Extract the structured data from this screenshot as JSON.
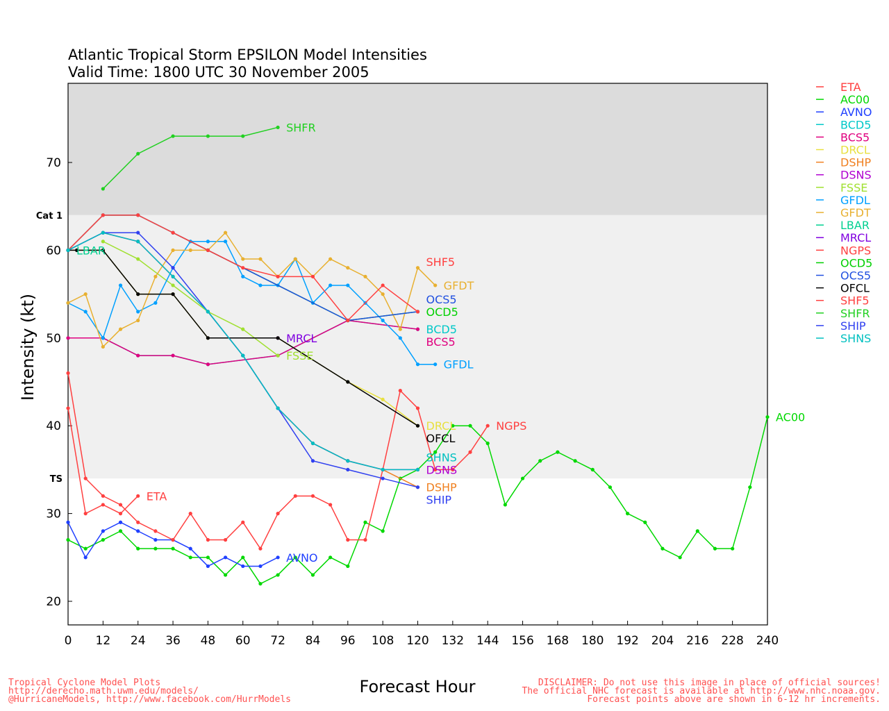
{
  "chart_data": {
    "type": "line",
    "title": "Atlantic Tropical Storm EPSILON Model Intensities",
    "subtitle": "Valid Time: 1800 UTC 30 November 2005",
    "xlabel": "Forecast Hour",
    "ylabel": "Intensity (kt)",
    "xlim": [
      0,
      240
    ],
    "ylim": [
      17,
      79
    ],
    "xticks": [
      0,
      12,
      24,
      36,
      48,
      60,
      72,
      84,
      96,
      108,
      120,
      132,
      144,
      156,
      168,
      180,
      192,
      204,
      216,
      228,
      240
    ],
    "yticks": [
      20,
      30,
      40,
      50,
      60,
      70
    ],
    "thresholds": [
      {
        "name": "Cat 1",
        "value": 64
      },
      {
        "name": "TS",
        "value": 34
      }
    ],
    "series": [
      {
        "name": "ETA",
        "color": "#ff4040",
        "x": [
          0,
          6,
          12,
          18,
          24
        ],
        "y": [
          42,
          30,
          31,
          30,
          32
        ]
      },
      {
        "name": "AC00",
        "color": "#00d800",
        "x": [
          0,
          6,
          12,
          18,
          24,
          30,
          36,
          42,
          48,
          54,
          60,
          66,
          72,
          78,
          84,
          90,
          96,
          102,
          108,
          114,
          120,
          126,
          132,
          138,
          144,
          150,
          156,
          162,
          168,
          174,
          180,
          186,
          192,
          198,
          204,
          210,
          216,
          222,
          228,
          234,
          240
        ],
        "y": [
          27,
          26,
          27,
          28,
          26,
          26,
          26,
          25,
          25,
          23,
          25,
          22,
          23,
          25,
          23,
          25,
          24,
          29,
          28,
          34,
          35,
          37,
          40,
          40,
          38,
          31,
          34,
          36,
          37,
          36,
          35,
          33,
          30,
          29,
          26,
          25,
          28,
          26,
          26,
          33,
          41
        ]
      },
      {
        "name": "AVNO",
        "color": "#2040ff",
        "x": [
          0,
          6,
          12,
          18,
          24,
          30,
          36,
          42,
          48,
          54,
          60,
          66,
          72
        ],
        "y": [
          29,
          25,
          28,
          29,
          28,
          27,
          27,
          26,
          24,
          25,
          24,
          24,
          25
        ]
      },
      {
        "name": "BCD5",
        "color": "#00c8c8",
        "x": [
          0,
          12,
          24,
          36,
          48,
          72,
          96,
          120
        ],
        "y": [
          50,
          50,
          48,
          48,
          47,
          48,
          52,
          51
        ]
      },
      {
        "name": "BCS5",
        "color": "#e0007f",
        "x": [
          0,
          12,
          24,
          36,
          48,
          72,
          96,
          120
        ],
        "y": [
          50,
          50,
          48,
          48,
          47,
          48,
          52,
          51
        ]
      },
      {
        "name": "DRCL",
        "color": "#e8e040",
        "x": [
          0,
          12,
          24,
          36,
          48,
          72,
          96,
          108,
          120
        ],
        "y": [
          60,
          60,
          55,
          55,
          50,
          50,
          45,
          43,
          40
        ]
      },
      {
        "name": "DSHP",
        "color": "#f08020",
        "x": [
          0,
          12,
          24,
          36,
          48,
          60,
          72,
          84,
          96,
          108,
          120
        ],
        "y": [
          60,
          62,
          61,
          57,
          53,
          48,
          42,
          38,
          36,
          35,
          33
        ]
      },
      {
        "name": "DSNS",
        "color": "#b000d0",
        "x": [
          0,
          12,
          24,
          36,
          48,
          60,
          72,
          84,
          96,
          108,
          120
        ],
        "y": [
          60,
          62,
          61,
          57,
          53,
          48,
          42,
          38,
          36,
          35,
          35
        ]
      },
      {
        "name": "FSSE",
        "color": "#a0e030",
        "x": [
          12,
          24,
          36,
          48,
          60,
          72
        ],
        "y": [
          61,
          59,
          56,
          53,
          51,
          48
        ]
      },
      {
        "name": "GFDL",
        "color": "#00a0ff",
        "x": [
          0,
          6,
          12,
          18,
          24,
          30,
          36,
          42,
          48,
          54,
          60,
          66,
          72,
          78,
          84,
          90,
          96,
          102,
          108,
          114,
          120,
          126
        ],
        "y": [
          54,
          53,
          50,
          56,
          53,
          54,
          58,
          61,
          61,
          61,
          57,
          56,
          56,
          59,
          54,
          56,
          56,
          54,
          52,
          50,
          47,
          47
        ]
      },
      {
        "name": "GFDT",
        "color": "#e8b030",
        "x": [
          0,
          6,
          12,
          18,
          24,
          30,
          36,
          42,
          48,
          54,
          60,
          66,
          72,
          78,
          84,
          90,
          96,
          102,
          108,
          114,
          120,
          126
        ],
        "y": [
          54,
          55,
          49,
          51,
          52,
          57,
          60,
          60,
          60,
          62,
          59,
          59,
          57,
          59,
          57,
          59,
          58,
          57,
          55,
          51,
          58,
          56
        ]
      },
      {
        "name": "LBAR",
        "color": "#00d090",
        "x": [
          0
        ],
        "y": [
          60
        ]
      },
      {
        "name": "MRCL",
        "color": "#8000e0",
        "x": [
          72
        ],
        "y": [
          50
        ]
      },
      {
        "name": "NGPS",
        "color": "#ff4040",
        "x": [
          0,
          6,
          12,
          18,
          24,
          30,
          36,
          42,
          48,
          54,
          60,
          66,
          72,
          78,
          84,
          90,
          96,
          102,
          108,
          114,
          120,
          126,
          132,
          138,
          144
        ],
        "y": [
          46,
          34,
          32,
          31,
          29,
          28,
          27,
          30,
          27,
          27,
          29,
          26,
          30,
          32,
          32,
          31,
          27,
          27,
          35,
          44,
          42,
          35,
          35,
          37,
          40
        ]
      },
      {
        "name": "OCD5",
        "color": "#00d000",
        "x": [
          0,
          12,
          24,
          36,
          48,
          96,
          120
        ],
        "y": [
          60,
          64,
          64,
          62,
          60,
          52,
          53
        ]
      },
      {
        "name": "OCS5",
        "color": "#2050e0",
        "x": [
          0,
          12,
          24,
          36,
          48,
          96,
          120
        ],
        "y": [
          60,
          64,
          64,
          62,
          60,
          52,
          53
        ]
      },
      {
        "name": "OFCL",
        "color": "#000000",
        "x": [
          0,
          3,
          12,
          24,
          36,
          48,
          72,
          96,
          120
        ],
        "y": [
          60,
          60,
          60,
          55,
          55,
          50,
          50,
          45,
          40
        ]
      },
      {
        "name": "SHF5",
        "color": "#ff4040",
        "x": [
          0,
          12,
          24,
          36,
          48,
          60,
          72,
          84,
          96,
          108,
          120
        ],
        "y": [
          60,
          64,
          64,
          62,
          60,
          58,
          57,
          57,
          52,
          56,
          53
        ]
      },
      {
        "name": "SHFR",
        "color": "#20d020",
        "x": [
          12,
          24,
          36,
          48,
          60,
          72
        ],
        "y": [
          67,
          71,
          73,
          73,
          73,
          74
        ]
      },
      {
        "name": "SHIP",
        "color": "#3040f0",
        "x": [
          0,
          12,
          24,
          36,
          48,
          60,
          72,
          84,
          96,
          108,
          120
        ],
        "y": [
          60,
          62,
          62,
          58,
          53,
          48,
          42,
          36,
          35,
          34,
          33
        ]
      },
      {
        "name": "SHNS",
        "color": "#00c0c0",
        "x": [
          0,
          12,
          24,
          36,
          48,
          60,
          72,
          84,
          96,
          108,
          120
        ],
        "y": [
          60,
          62,
          61,
          57,
          53,
          48,
          42,
          38,
          36,
          35,
          35
        ]
      }
    ]
  },
  "footer": {
    "left": [
      "Tropical Cyclone Model Plots",
      "http://derecho.math.uwm.edu/models/",
      "@HurricaneModels, http://www.facebook.com/HurrModels"
    ],
    "right": [
      "DISCLAIMER: Do not use this image in place of official sources!",
      "The official NHC forecast is available at http://www.nhc.noaa.gov.",
      "Forecast points above are shown in 6-12 hr increments."
    ]
  }
}
